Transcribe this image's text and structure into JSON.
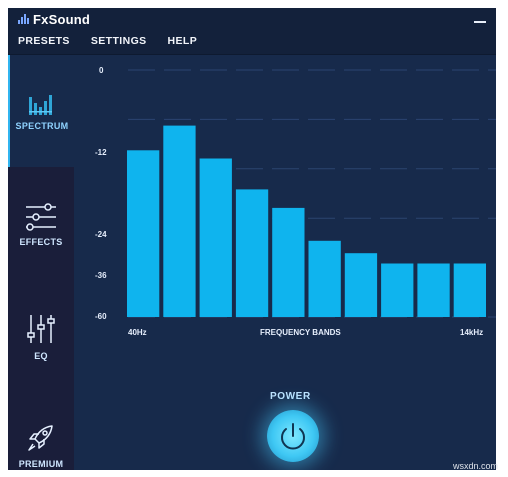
{
  "app": {
    "title": "FxSound",
    "colors": {
      "accent": "#0fb4ee",
      "sidebar_bg": "#1a1e3a",
      "panel_bg": "#172a4b",
      "titlebar_bg": "#13213b"
    }
  },
  "menu": {
    "items": [
      "PRESETS",
      "SETTINGS",
      "HELP"
    ]
  },
  "window_controls": {
    "minimize_icon": "minimize-icon"
  },
  "sidebar": {
    "items": [
      {
        "label": "SPECTRUM",
        "icon": "spectrum-icon",
        "active": true
      },
      {
        "label": "EFFECTS",
        "icon": "sliders-horizontal-icon",
        "active": false
      },
      {
        "label": "EQ",
        "icon": "sliders-vertical-icon",
        "active": false
      },
      {
        "label": "PREMIUM",
        "icon": "rocket-icon",
        "active": false
      }
    ]
  },
  "spectrum": {
    "y_tick_labels": [
      "0",
      "-12",
      "-24",
      "-36",
      "-60"
    ],
    "x_left_label": "40Hz",
    "x_center_label": "FREQUENCY BANDS",
    "x_right_label": "14kHz"
  },
  "chart_data": {
    "type": "bar",
    "bar_color": "#0fb4ee",
    "ylim": [
      -60,
      0
    ],
    "y_tick_values": [
      0,
      -12,
      -24,
      -36,
      -60
    ],
    "x_label": "FREQUENCY BANDS",
    "series": [
      {
        "values": [
          -19.5,
          -13.5,
          -21.5,
          -29,
          -33.5,
          -41.5,
          -44.5,
          -47,
          -47,
          -47
        ]
      }
    ]
  },
  "power": {
    "label": "POWER",
    "icon": "power-icon"
  },
  "watermark": "wsxdn.com"
}
